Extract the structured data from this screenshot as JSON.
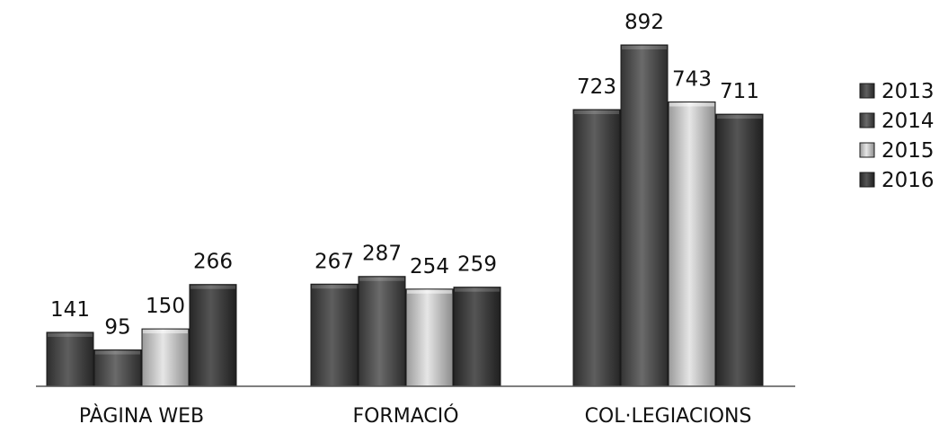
{
  "chart_data": {
    "type": "bar",
    "title": "",
    "xlabel": "",
    "ylabel": "",
    "ylim": [
      0,
      950
    ],
    "grid": false,
    "legend_position": "right",
    "categories": [
      "PÀGINA WEB",
      "FORMACIÓ",
      "COL·LEGIACIONS"
    ],
    "series": [
      {
        "name": "2013",
        "color": "#4a4a4a",
        "values": [
          141,
          267,
          723
        ],
        "labels": [
          "141",
          "267",
          "723"
        ]
      },
      {
        "name": "2014",
        "color": "#555555",
        "values": [
          95,
          287,
          892
        ],
        "labels": [
          "95",
          "287",
          "892"
        ]
      },
      {
        "name": "2015",
        "color": "#c8c8c8",
        "values": [
          150,
          254,
          743
        ],
        "labels": [
          "150",
          "254",
          "743"
        ]
      },
      {
        "name": "2016",
        "color": "#3c3c3c",
        "values": [
          266,
          259,
          711
        ],
        "labels": [
          "266",
          "259",
          "711"
        ]
      }
    ]
  }
}
